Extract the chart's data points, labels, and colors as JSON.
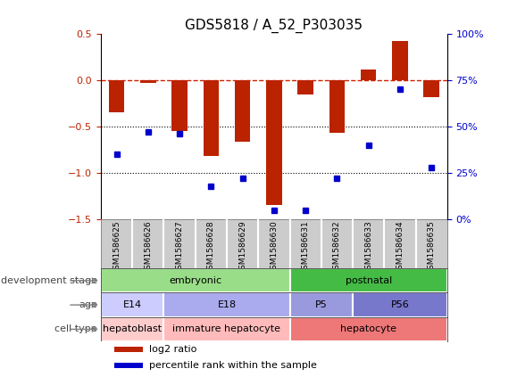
{
  "title": "GDS5818 / A_52_P303035",
  "samples": [
    "GSM1586625",
    "GSM1586626",
    "GSM1586627",
    "GSM1586628",
    "GSM1586629",
    "GSM1586630",
    "GSM1586631",
    "GSM1586632",
    "GSM1586633",
    "GSM1586634",
    "GSM1586635"
  ],
  "log2_ratio": [
    -0.35,
    -0.03,
    -0.55,
    -0.82,
    -0.66,
    -1.35,
    -0.15,
    -0.57,
    0.12,
    0.42,
    -0.18
  ],
  "percentile": [
    35,
    47,
    46,
    18,
    22,
    5,
    5,
    22,
    40,
    70,
    28
  ],
  "ylim_left": [
    -1.5,
    0.5
  ],
  "ylim_right": [
    0,
    100
  ],
  "bar_color": "#bb2200",
  "dot_color": "#0000cc",
  "hline_color": "#cc2200",
  "dotline_color": "#000000",
  "dev_stage_segments": [
    {
      "start": 0,
      "end": 6,
      "color": "#99dd88",
      "label": "embryonic"
    },
    {
      "start": 6,
      "end": 11,
      "color": "#44bb44",
      "label": "postnatal"
    }
  ],
  "age_segments": [
    {
      "start": 0,
      "end": 2,
      "color": "#ccccff",
      "label": "E14"
    },
    {
      "start": 2,
      "end": 6,
      "color": "#aaaaee",
      "label": "E18"
    },
    {
      "start": 6,
      "end": 8,
      "color": "#9999dd",
      "label": "P5"
    },
    {
      "start": 8,
      "end": 11,
      "color": "#7777cc",
      "label": "P56"
    }
  ],
  "cell_type_segments": [
    {
      "start": 0,
      "end": 2,
      "color": "#ffcccc",
      "label": "hepatoblast"
    },
    {
      "start": 2,
      "end": 6,
      "color": "#ffbbbb",
      "label": "immature hepatocyte"
    },
    {
      "start": 6,
      "end": 11,
      "color": "#ee7777",
      "label": "hepatocyte"
    }
  ],
  "row_labels": [
    "development stage",
    "age",
    "cell type"
  ],
  "legend_items": [
    {
      "color": "#bb2200",
      "label": "log2 ratio"
    },
    {
      "color": "#0000cc",
      "label": "percentile rank within the sample"
    }
  ],
  "tick_bg_color": "#cccccc",
  "tick_border_color": "#888888",
  "row_border_color": "#555555",
  "label_color": "#444444",
  "right_yticks": [
    0,
    25,
    50,
    75,
    100
  ],
  "right_yticklabels": [
    "0%",
    "25%",
    "50%",
    "75%",
    "100%"
  ],
  "left_yticks": [
    -1.5,
    -1.0,
    -0.5,
    0,
    0.5
  ]
}
